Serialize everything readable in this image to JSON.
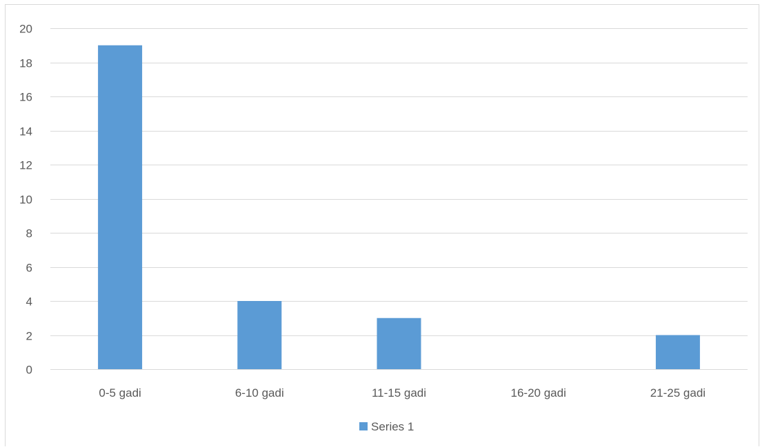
{
  "chart_data": {
    "type": "bar",
    "categories": [
      "0-5 gadi",
      "6-10 gadi",
      "11-15 gadi",
      "16-20 gadi",
      "21-25 gadi"
    ],
    "series": [
      {
        "name": "Series 1",
        "values": [
          19,
          4,
          3,
          0,
          2
        ],
        "color": "#5b9bd5"
      }
    ],
    "ylim": [
      0,
      20
    ],
    "y_ticks": [
      0,
      2,
      4,
      6,
      8,
      10,
      12,
      14,
      16,
      18,
      20
    ],
    "y_tick_labels": [
      "0",
      "2",
      "4",
      "6",
      "8",
      "10",
      "12",
      "14",
      "16",
      "18",
      "20"
    ],
    "grid": true,
    "gridline_color": "#d9d9d9",
    "legend_position": "bottom",
    "title": "",
    "xlabel": "",
    "ylabel": ""
  }
}
